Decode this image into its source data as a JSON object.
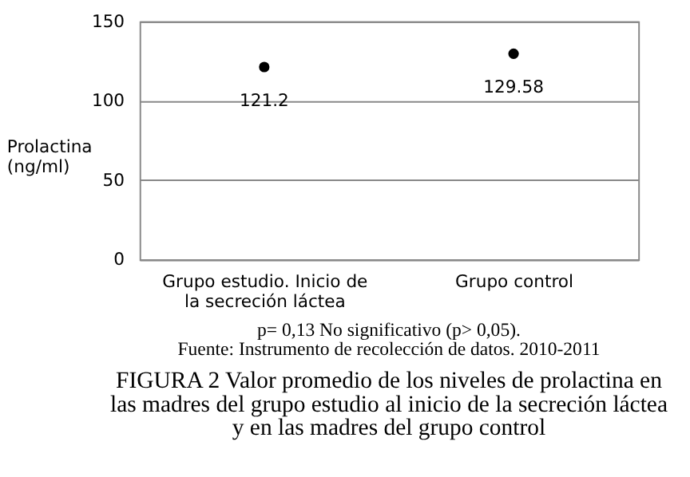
{
  "chart_data": {
    "type": "scatter",
    "title": "FIGURA 2 Valor promedio de los niveles de prolactina en\nlas madres del grupo estudio  al inicio de la secreción láctea\ny en las madres del grupo control",
    "ylabel": "Prolactina\n(ng/ml)",
    "categories": [
      "Grupo estudio. Inicio de la secreción láctea",
      "Grupo control"
    ],
    "series": [
      {
        "color": "#000000",
        "values": [
          121.2,
          129.58
        ]
      }
    ],
    "ylim": [
      0,
      150
    ],
    "yticks": [
      0,
      50,
      100,
      150
    ],
    "grid": "y",
    "marker": "circle",
    "data_labels": true,
    "annotations": [
      "p= 0,13 No significativo (p> 0,05).",
      "Fuente: Instrumento de recolección de datos. 2010-2011"
    ]
  }
}
